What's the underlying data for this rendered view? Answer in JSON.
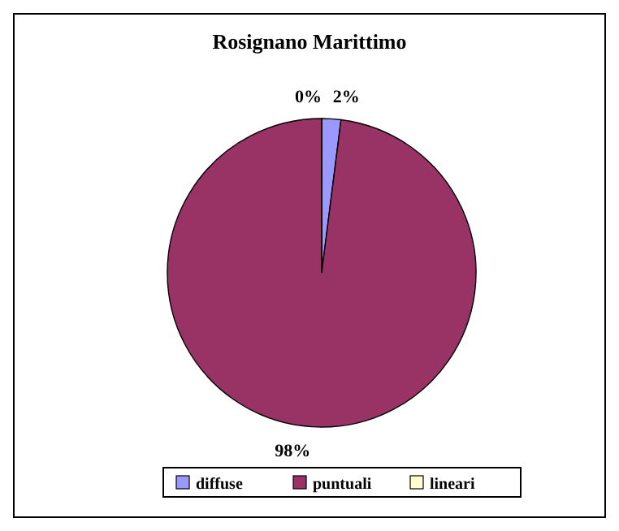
{
  "chart_data": {
    "type": "pie",
    "title": "Rosignano Marittimo",
    "categories": [
      "diffuse",
      "puntuali",
      "lineari"
    ],
    "values": [
      2,
      98,
      0
    ],
    "colors": [
      "#9999ff",
      "#993366",
      "#ffffcc"
    ],
    "value_labels": [
      "2%",
      "98%",
      "0%"
    ],
    "legend": "bottom"
  }
}
